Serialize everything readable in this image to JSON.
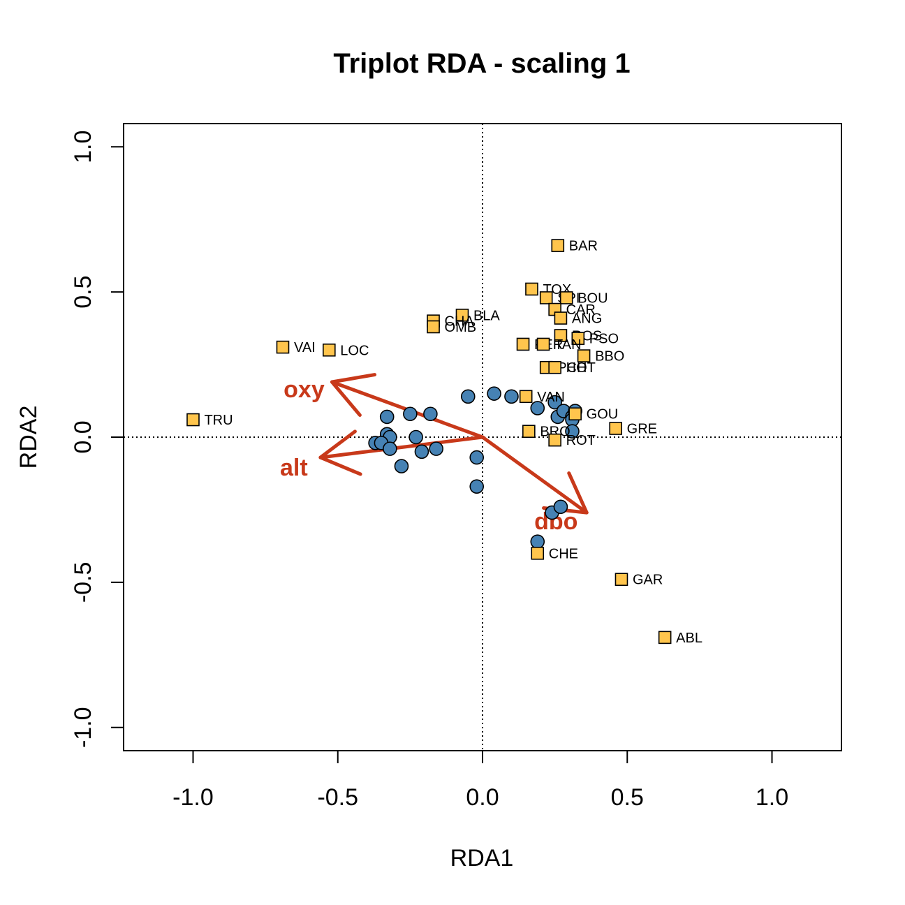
{
  "chart_data": {
    "type": "scatter",
    "title": "Triplot RDA - scaling 1",
    "xlabel": "RDA1",
    "ylabel": "RDA2",
    "xlim": [
      -1.24,
      1.24
    ],
    "ylim": [
      -1.08,
      1.08
    ],
    "x_ticks": [
      {
        "value": -1.0,
        "label": "-1.0"
      },
      {
        "value": -0.5,
        "label": "-0.5"
      },
      {
        "value": 0.0,
        "label": "0.0"
      },
      {
        "value": 0.5,
        "label": "0.5"
      },
      {
        "value": 1.0,
        "label": "1.0"
      }
    ],
    "y_ticks": [
      {
        "value": -1.0,
        "label": "-1.0"
      },
      {
        "value": -0.5,
        "label": "-0.5"
      },
      {
        "value": 0.0,
        "label": "0.0"
      },
      {
        "value": 0.5,
        "label": "0.5"
      },
      {
        "value": 1.0,
        "label": "1.0"
      }
    ],
    "reference_lines": {
      "x": 0,
      "y": 0,
      "style": "dotted"
    },
    "colors": {
      "sites": "#4682B4",
      "species": "#FFC54D",
      "arrows": "#C8391A",
      "outline": "#000000"
    },
    "sites": [
      [
        0.04,
        0.15
      ],
      [
        0.1,
        0.14
      ],
      [
        -0.05,
        0.14
      ],
      [
        0.19,
        0.1
      ],
      [
        0.25,
        0.12
      ],
      [
        0.26,
        0.07
      ],
      [
        0.28,
        0.09
      ],
      [
        0.31,
        0.07
      ],
      [
        0.32,
        0.09
      ],
      [
        0.31,
        0.06
      ],
      [
        0.31,
        0.02
      ],
      [
        -0.25,
        0.08
      ],
      [
        -0.18,
        0.08
      ],
      [
        -0.33,
        0.07
      ],
      [
        -0.33,
        0.01
      ],
      [
        -0.32,
        0.0
      ],
      [
        -0.37,
        -0.02
      ],
      [
        -0.35,
        -0.02
      ],
      [
        -0.32,
        -0.04
      ],
      [
        -0.23,
        0.0
      ],
      [
        -0.21,
        -0.05
      ],
      [
        -0.16,
        -0.04
      ],
      [
        -0.28,
        -0.1
      ],
      [
        -0.02,
        -0.07
      ],
      [
        -0.02,
        -0.17
      ],
      [
        0.24,
        -0.26
      ],
      [
        0.27,
        -0.24
      ],
      [
        0.19,
        -0.36
      ]
    ],
    "species": [
      {
        "name": "BAR",
        "x": 0.26,
        "y": 0.66
      },
      {
        "name": "TOX",
        "x": 0.17,
        "y": 0.51
      },
      {
        "name": "SPI",
        "x": 0.22,
        "y": 0.48
      },
      {
        "name": "BOU",
        "x": 0.29,
        "y": 0.48
      },
      {
        "name": "CAR",
        "x": 0.25,
        "y": 0.44
      },
      {
        "name": "ANG",
        "x": 0.27,
        "y": 0.41
      },
      {
        "name": "BLA",
        "x": -0.07,
        "y": 0.42
      },
      {
        "name": "CHA",
        "x": -0.17,
        "y": 0.4
      },
      {
        "name": "OMB",
        "x": -0.17,
        "y": 0.38
      },
      {
        "name": "ROS",
        "x": 0.27,
        "y": 0.35
      },
      {
        "name": "PSO",
        "x": 0.33,
        "y": 0.34
      },
      {
        "name": "PER",
        "x": 0.14,
        "y": 0.32
      },
      {
        "name": "TAN",
        "x": 0.21,
        "y": 0.32
      },
      {
        "name": "BBO",
        "x": 0.35,
        "y": 0.28
      },
      {
        "name": "PCH",
        "x": 0.22,
        "y": 0.24
      },
      {
        "name": "HOT",
        "x": 0.25,
        "y": 0.24
      },
      {
        "name": "VAI",
        "x": -0.69,
        "y": 0.31
      },
      {
        "name": "LOC",
        "x": -0.53,
        "y": 0.3
      },
      {
        "name": "VAN",
        "x": 0.15,
        "y": 0.14
      },
      {
        "name": "GOU",
        "x": 0.32,
        "y": 0.08
      },
      {
        "name": "GRE",
        "x": 0.46,
        "y": 0.03
      },
      {
        "name": "BRO",
        "x": 0.16,
        "y": 0.02
      },
      {
        "name": "ROT",
        "x": 0.25,
        "y": -0.01
      },
      {
        "name": "TRU",
        "x": -1.0,
        "y": 0.06
      },
      {
        "name": "CHE",
        "x": 0.19,
        "y": -0.4
      },
      {
        "name": "GAR",
        "x": 0.48,
        "y": -0.49
      },
      {
        "name": "ABL",
        "x": 0.63,
        "y": -0.69
      }
    ],
    "arrows": [
      {
        "name": "oxy",
        "x": -0.52,
        "y": 0.19
      },
      {
        "name": "alt",
        "x": -0.56,
        "y": -0.07
      },
      {
        "name": "dbo",
        "x": 0.36,
        "y": -0.26
      }
    ]
  }
}
